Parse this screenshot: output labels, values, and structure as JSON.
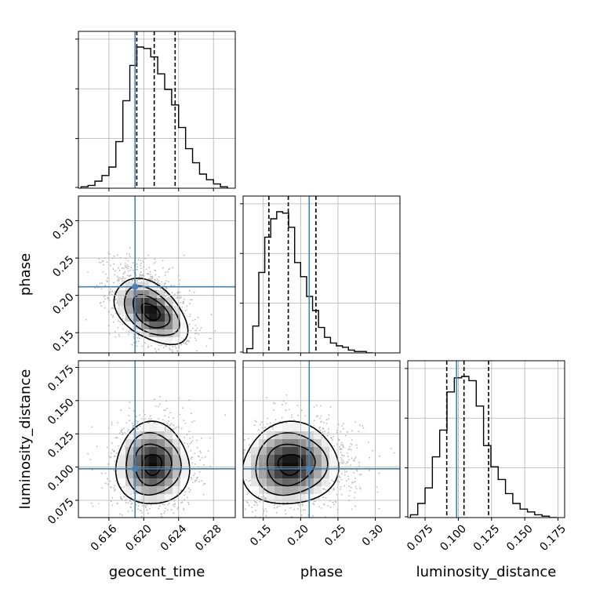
{
  "chart_data": {
    "type": "corner",
    "parameters": [
      {
        "name": "geocent_time",
        "label": "geocent_time",
        "range": [
          0.6125,
          0.6305
        ],
        "ticks": [
          0.616,
          0.62,
          0.624,
          0.628
        ],
        "tick_labels": [
          "0.616",
          "0.620",
          "0.624",
          "0.628"
        ],
        "truth": 0.619,
        "quantiles": [
          0.6192,
          0.6212,
          0.6236
        ],
        "histogram": {
          "bin_edges": [
            0.6128,
            0.6136,
            0.6144,
            0.6152,
            0.616,
            0.6168,
            0.6176,
            0.6184,
            0.6192,
            0.62,
            0.6208,
            0.6216,
            0.6224,
            0.6232,
            0.624,
            0.6248,
            0.6256,
            0.6264,
            0.6272,
            0.628,
            0.6288,
            0.6296
          ],
          "values": [
            0.01,
            0.02,
            0.05,
            0.09,
            0.15,
            0.33,
            0.62,
            0.87,
            1.0,
            0.99,
            0.93,
            0.81,
            0.7,
            0.59,
            0.43,
            0.28,
            0.18,
            0.1,
            0.06,
            0.03,
            0.01
          ]
        }
      },
      {
        "name": "phase",
        "label": "phase",
        "range": [
          0.123,
          0.333
        ],
        "ticks": [
          0.15,
          0.2,
          0.25,
          0.3
        ],
        "tick_labels": [
          "0.15",
          "0.20",
          "0.25",
          "0.30"
        ],
        "truth": 0.2115,
        "quantiles": [
          0.1575,
          0.1835,
          0.2205
        ],
        "histogram": {
          "bin_edges": [
            0.128,
            0.136,
            0.144,
            0.152,
            0.16,
            0.168,
            0.176,
            0.184,
            0.192,
            0.2,
            0.208,
            0.216,
            0.224,
            0.232,
            0.24,
            0.248,
            0.256,
            0.264,
            0.272,
            0.28,
            0.288,
            0.296
          ],
          "values": [
            0.03,
            0.19,
            0.57,
            0.82,
            0.95,
            1.0,
            0.99,
            0.89,
            0.64,
            0.54,
            0.4,
            0.3,
            0.18,
            0.11,
            0.07,
            0.05,
            0.04,
            0.02,
            0.01,
            0.01,
            0.0
          ]
        }
      },
      {
        "name": "luminosity_distance",
        "label": "luminosity_distance",
        "range": [
          0.062,
          0.18
        ],
        "ticks": [
          0.075,
          0.1,
          0.125,
          0.15,
          0.175
        ],
        "tick_labels": [
          "0.075",
          "0.100",
          "0.125",
          "0.150",
          "0.175"
        ],
        "truth": 0.0987,
        "quantiles": [
          0.0913,
          0.1043,
          0.1228
        ],
        "histogram": {
          "bin_edges": [
            0.064,
            0.0695,
            0.075,
            0.0805,
            0.086,
            0.0915,
            0.097,
            0.1025,
            0.108,
            0.1135,
            0.119,
            0.1245,
            0.13,
            0.1355,
            0.141,
            0.1465,
            0.152,
            0.1575,
            0.163,
            0.1685,
            0.174
          ],
          "values": [
            0.02,
            0.1,
            0.21,
            0.43,
            0.62,
            0.89,
            0.99,
            1.0,
            0.97,
            0.79,
            0.51,
            0.36,
            0.27,
            0.17,
            0.1,
            0.06,
            0.04,
            0.02,
            0.01,
            0.0
          ]
        }
      }
    ],
    "pairs": [
      {
        "x": "geocent_time",
        "y": "phase",
        "peak": [
          0.6208,
          0.178
        ],
        "spread": [
          0.0021,
          0.022
        ],
        "correlation": -0.45
      },
      {
        "x": "geocent_time",
        "y": "luminosity_distance",
        "peak": [
          0.621,
          0.102
        ],
        "spread": [
          0.0021,
          0.0155
        ],
        "correlation": 0.0
      },
      {
        "x": "phase",
        "y": "luminosity_distance",
        "peak": [
          0.186,
          0.102
        ],
        "spread": [
          0.032,
          0.0155
        ],
        "correlation": 0.05
      }
    ],
    "contour_levels_sigma": [
      0.5,
      1.0,
      1.5,
      2.0
    ],
    "truth_color": "#4682b4",
    "histogram_color": "#000000",
    "grid": true,
    "title": ""
  }
}
